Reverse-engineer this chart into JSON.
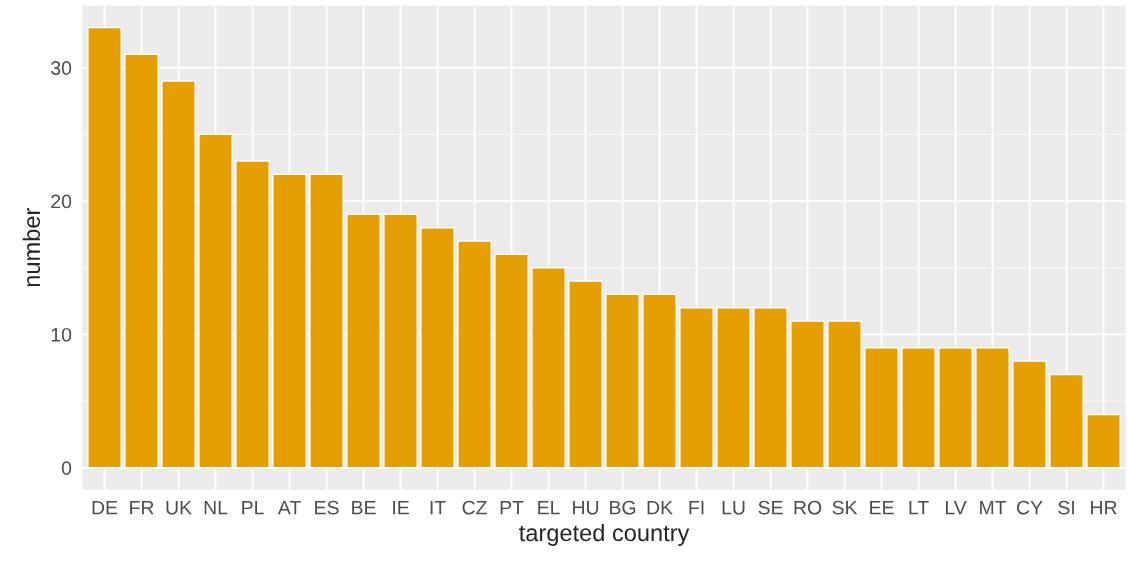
{
  "chart_data": {
    "type": "bar",
    "xlabel": "targeted country",
    "ylabel": "number",
    "categories": [
      "DE",
      "FR",
      "UK",
      "NL",
      "PL",
      "AT",
      "ES",
      "BE",
      "IE",
      "IT",
      "CZ",
      "PT",
      "EL",
      "HU",
      "BG",
      "DK",
      "FI",
      "LU",
      "SE",
      "RO",
      "SK",
      "EE",
      "LT",
      "LV",
      "MT",
      "CY",
      "SI",
      "HR"
    ],
    "values": [
      33,
      31,
      29,
      25,
      23,
      22,
      22,
      19,
      19,
      18,
      17,
      16,
      15,
      14,
      13,
      13,
      12,
      12,
      12,
      11,
      11,
      9,
      9,
      9,
      9,
      8,
      7,
      4
    ],
    "color": "#e69f00",
    "ylim": [
      -1.65,
      34.65
    ],
    "yticks": [
      0,
      {
        "value": 5,
        "label": null
      },
      10,
      {
        "value": 15,
        "label": null
      },
      20,
      {
        "value": 25,
        "label": null
      },
      30
    ],
    "grid": true
  }
}
